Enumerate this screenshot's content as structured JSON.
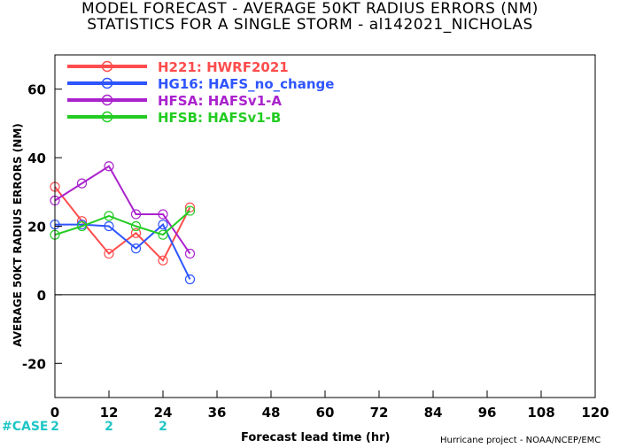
{
  "chart_data": {
    "type": "line",
    "title": [
      "MODEL FORECAST - AVERAGE 50KT RADIUS ERRORS (NM)",
      "STATISTICS FOR A SINGLE STORM - al142021_NICHOLAS"
    ],
    "xlabel": "Forecast lead time (hr)",
    "ylabel": "AVERAGE 50KT RADIUS ERRORS (NM)",
    "xlim": [
      0,
      120
    ],
    "ylim": [
      -30,
      70
    ],
    "xticks": [
      0,
      12,
      24,
      36,
      48,
      60,
      72,
      84,
      96,
      108,
      120
    ],
    "yticks": [
      -20,
      0,
      20,
      40,
      60
    ],
    "grid": false,
    "zero_line": true,
    "legend_position": "top-left",
    "series": [
      {
        "name": "H221: HWRF2021",
        "color": "#ff4d4d",
        "x": [
          0,
          6,
          12,
          18,
          24,
          30
        ],
        "y": [
          31.5,
          21.5,
          12,
          18,
          10,
          25.5
        ]
      },
      {
        "name": "HG16: HAFS_no_change",
        "color": "#2f55ff",
        "x": [
          0,
          6,
          12,
          18,
          24,
          30
        ],
        "y": [
          20.5,
          20.5,
          20,
          13.5,
          20.5,
          4.5
        ]
      },
      {
        "name": "HFSA: HAFSv1-A",
        "color": "#aa22cc",
        "x": [
          0,
          6,
          12,
          18,
          24,
          30
        ],
        "y": [
          27.5,
          32.5,
          37.5,
          23.5,
          23.5,
          12
        ]
      },
      {
        "name": "HFSB: HAFSv1-B",
        "color": "#22cc22",
        "x": [
          0,
          6,
          12,
          18,
          24,
          30
        ],
        "y": [
          17.5,
          20,
          23,
          20,
          17.5,
          24.5
        ]
      }
    ],
    "case_label": "#CASE",
    "case_counts": [
      {
        "x": 0,
        "n": "2"
      },
      {
        "x": 12,
        "n": "2"
      },
      {
        "x": 24,
        "n": "2"
      }
    ],
    "credit": "Hurricane project - NOAA/NCEP/EMC"
  }
}
